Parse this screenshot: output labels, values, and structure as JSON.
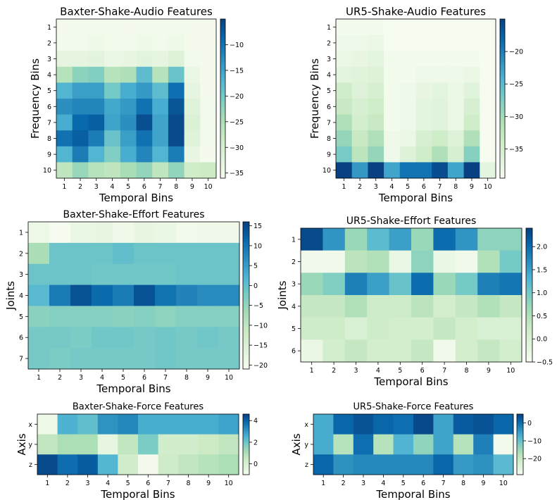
{
  "chart_data": [
    {
      "type": "heatmap",
      "title": "Baxter-Shake-Audio Features",
      "xlabel": "Temporal Bins",
      "ylabel": "Frequency Bins",
      "x_ticks": [
        "1",
        "2",
        "3",
        "4",
        "5",
        "6",
        "7",
        "8",
        "9",
        "10"
      ],
      "y_ticks": [
        "1",
        "2",
        "3",
        "4",
        "5",
        "6",
        "7",
        "8",
        "9",
        "10"
      ],
      "colorbar_ticks": [
        "−10",
        "−15",
        "−20",
        "−25",
        "−30",
        "−35"
      ],
      "colorbar_tick_values": [
        -10,
        -15,
        -20,
        -25,
        -30,
        -35
      ],
      "zlim": [
        -36,
        -5
      ],
      "colormap": "GnBu",
      "values": [
        [
          -35.5,
          -35,
          -35,
          -35,
          -35.5,
          -35,
          -35,
          -35,
          -35.5,
          -35.5
        ],
        [
          -35,
          -35,
          -34.5,
          -35,
          -35,
          -34.5,
          -35,
          -34.5,
          -35.5,
          -35.5
        ],
        [
          -33,
          -33,
          -32.5,
          -34,
          -33.5,
          -32.5,
          -33,
          -31.5,
          -35,
          -35.5
        ],
        [
          -26,
          -22,
          -21,
          -26,
          -25,
          -18,
          -26,
          -19,
          -34,
          -35.5
        ],
        [
          -17,
          -14.5,
          -14.5,
          -20,
          -16,
          -14,
          -18,
          -9.5,
          -33,
          -35.5
        ],
        [
          -13,
          -12,
          -12,
          -15.5,
          -14,
          -10,
          -16,
          -7,
          -32,
          -35
        ],
        [
          -16,
          -9,
          -8,
          -15,
          -13,
          -6.5,
          -15,
          -6,
          -31,
          -35
        ],
        [
          -10,
          -8,
          -11,
          -19,
          -14.5,
          -10,
          -15,
          -6,
          -32,
          -35
        ],
        [
          -17,
          -11,
          -17,
          -21,
          -16,
          -12,
          -17,
          -11,
          -33.5,
          -35.5
        ],
        [
          -27,
          -23,
          -26,
          -27,
          -24.5,
          -22.5,
          -27,
          -22.5,
          -29,
          -28.5
        ]
      ]
    },
    {
      "type": "heatmap",
      "title": "UR5-Shake-Audio Features",
      "xlabel": "Temporal Bins",
      "ylabel": "Frequency Bins",
      "x_ticks": [
        "1",
        "2",
        "3",
        "4",
        "5",
        "6",
        "7",
        "8",
        "9",
        "10"
      ],
      "y_ticks": [
        "1",
        "2",
        "3",
        "4",
        "5",
        "6",
        "7",
        "8",
        "9",
        "10"
      ],
      "colorbar_ticks": [
        "−20",
        "−25",
        "−30",
        "−35"
      ],
      "colorbar_tick_values": [
        -20,
        -25,
        -30,
        -35
      ],
      "zlim": [
        -39.5,
        -15
      ],
      "colormap": "GnBu",
      "values": [
        [
          -39,
          -39,
          -39,
          -39.5,
          -39.5,
          -39.5,
          -39.5,
          -39.5,
          -39.5,
          -39.5
        ],
        [
          -38.5,
          -38.5,
          -38,
          -39.5,
          -39.5,
          -39.5,
          -39.5,
          -39.5,
          -39.5,
          -39.5
        ],
        [
          -38,
          -37.5,
          -37,
          -39,
          -39,
          -39,
          -39,
          -39,
          -39,
          -39.5
        ],
        [
          -37,
          -36.5,
          -36,
          -39,
          -39,
          -38.5,
          -38.5,
          -38.5,
          -38,
          -39.5
        ],
        [
          -34,
          -36,
          -35,
          -39,
          -38.5,
          -37.5,
          -37,
          -38,
          -36.5,
          -39.5
        ],
        [
          -33,
          -35,
          -34,
          -39,
          -38.5,
          -37,
          -36.5,
          -38,
          -35,
          -39.5
        ],
        [
          -31,
          -34.5,
          -33,
          -39,
          -38.5,
          -37,
          -36.5,
          -38,
          -34,
          -39.5
        ],
        [
          -29,
          -33,
          -31,
          -38.5,
          -38,
          -35,
          -34,
          -36,
          -31,
          -39.5
        ],
        [
          -27,
          -32,
          -29,
          -38.5,
          -36,
          -34,
          -31,
          -35,
          -28,
          -39.5
        ],
        [
          -13,
          -22,
          -13,
          -23,
          -19,
          -19,
          -16,
          -23,
          -13,
          -37
        ]
      ]
    },
    {
      "type": "heatmap",
      "title": "Baxter-Shake-Effort Features",
      "xlabel": "Temporal Bins",
      "ylabel": "Joints",
      "x_ticks": [
        "1",
        "2",
        "3",
        "4",
        "5",
        "6",
        "7",
        "8",
        "9",
        "10"
      ],
      "y_ticks": [
        "1",
        "2",
        "3",
        "4",
        "5",
        "6",
        "7"
      ],
      "colorbar_ticks": [
        "15",
        "10",
        "5",
        "0",
        "−5",
        "−10",
        "−15",
        "−20"
      ],
      "colorbar_tick_values": [
        15,
        10,
        5,
        0,
        -5,
        -10,
        -15,
        -20
      ],
      "zlim": [
        -21,
        16
      ],
      "colormap": "GnBu",
      "values": [
        [
          -19,
          -20.5,
          -18.5,
          -18,
          -19.5,
          -18,
          -18.5,
          -20,
          -19.5,
          -19.5
        ],
        [
          -7.5,
          -1,
          -1,
          -1,
          0,
          -1,
          -1,
          -1,
          -1,
          -1
        ],
        [
          -1,
          -1,
          -1,
          -1.5,
          -1.5,
          -1.5,
          -1.5,
          -1,
          -1,
          -1
        ],
        [
          1,
          9,
          14,
          11,
          9,
          14,
          10,
          8,
          7,
          7
        ],
        [
          -4,
          -3.5,
          -3.5,
          -3.5,
          -4,
          -3.5,
          -4.5,
          -3.5,
          -3.5,
          -3.5
        ],
        [
          -2,
          -2,
          -2.5,
          -1.5,
          -1.5,
          -2,
          -1.5,
          -2,
          -1.5,
          -2
        ],
        [
          -2,
          -2.5,
          -2,
          -2,
          -2,
          -2,
          -1.5,
          -2,
          -2,
          -2
        ]
      ]
    },
    {
      "type": "heatmap",
      "title": "UR5-Shake-Effort Features",
      "xlabel": "Temporal Bins",
      "ylabel": "Joints",
      "x_ticks": [
        "1",
        "2",
        "3",
        "4",
        "5",
        "6",
        "7",
        "8",
        "9",
        "10"
      ],
      "y_ticks": [
        "1",
        "2",
        "3",
        "4",
        "5",
        "6"
      ],
      "colorbar_ticks": [
        "2.0",
        "1.5",
        "1.0",
        "0.5",
        "0.0",
        "−0.5"
      ],
      "colorbar_tick_values": [
        2.0,
        1.5,
        1.0,
        0.5,
        0.0,
        -0.5
      ],
      "zlim": [
        -0.5,
        2.4
      ],
      "colormap": "GnBu",
      "values": [
        [
          2.3,
          1.6,
          0.7,
          1.2,
          1.5,
          0.7,
          2.0,
          1.6,
          0.8,
          0.8
        ],
        [
          -0.4,
          -0.4,
          0.4,
          0.5,
          -0.3,
          0.8,
          -0.3,
          -0.4,
          0.5,
          1.0
        ],
        [
          0.7,
          0.9,
          1.8,
          1.5,
          1.1,
          2.0,
          0.7,
          1.0,
          1.8,
          1.9
        ],
        [
          0.3,
          0.3,
          0.5,
          0.2,
          0.2,
          0.4,
          0.1,
          0.3,
          0.5,
          0.3
        ],
        [
          0.2,
          0.2,
          0.0,
          0.2,
          0.1,
          0.1,
          0.3,
          0.1,
          0.0,
          0.0
        ],
        [
          -0.3,
          0.1,
          0.3,
          0.1,
          0.1,
          0.3,
          -0.4,
          0.1,
          0.3,
          0.1
        ]
      ]
    },
    {
      "type": "heatmap",
      "title": "Baxter-Shake-Force Features",
      "xlabel": "Temporal Bins",
      "ylabel": "Axis",
      "x_ticks": [
        "1",
        "2",
        "3",
        "4",
        "5",
        "6",
        "7",
        "8",
        "9",
        "10"
      ],
      "y_ticks": [
        "x",
        "y",
        "z"
      ],
      "colorbar_ticks": [
        "4",
        "2",
        "0"
      ],
      "colorbar_tick_values": [
        4,
        2,
        0
      ],
      "zlim": [
        -1,
        4.6
      ],
      "colormap": "GnBu",
      "values": [
        [
          -0.7,
          2.5,
          2.2,
          3.1,
          3.3,
          2.6,
          2.6,
          2.6,
          2.6,
          2.8
        ],
        [
          0.6,
          1.0,
          1.0,
          -0.5,
          0.6,
          1.8,
          0.2,
          0.2,
          0.4,
          0.6
        ],
        [
          4.4,
          3.8,
          4.1,
          2.4,
          0.2,
          -0.9,
          0.3,
          0.6,
          0.8,
          1.0
        ]
      ]
    },
    {
      "type": "heatmap",
      "title": "UR5-Shake-Force Features",
      "xlabel": "Temporal Bins",
      "ylabel": "Axis",
      "x_ticks": [
        "1",
        "2",
        "3",
        "4",
        "5",
        "6",
        "7",
        "8",
        "9",
        "10"
      ],
      "y_ticks": [
        "x",
        "y",
        "z"
      ],
      "colorbar_ticks": [
        "0",
        "−10",
        "−20"
      ],
      "colorbar_tick_values": [
        0,
        -10,
        -20
      ],
      "zlim": [
        -29,
        5
      ],
      "colormap": "GnBu",
      "values": [
        [
          -7,
          1,
          3,
          1,
          0,
          4,
          -6,
          2,
          3,
          1
        ],
        [
          -7,
          -18,
          0,
          -18,
          -8,
          -14,
          -6,
          -18,
          -2,
          -28
        ],
        [
          1,
          -4,
          -3,
          -3,
          -3,
          -3,
          1,
          -5,
          -4,
          -9
        ]
      ]
    }
  ]
}
